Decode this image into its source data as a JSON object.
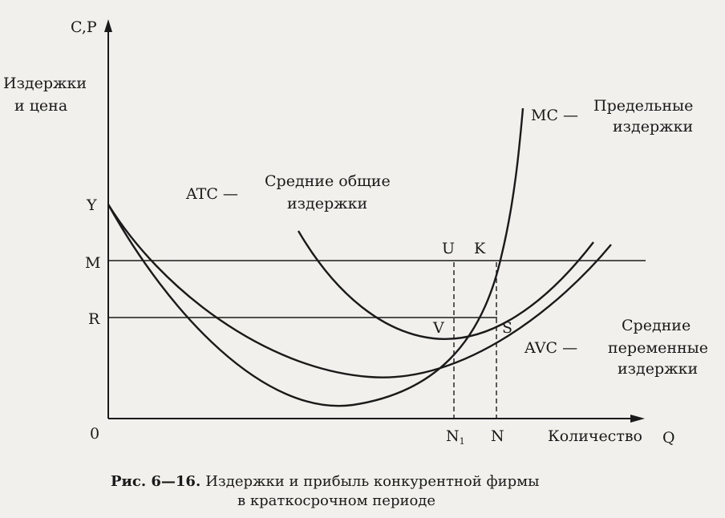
{
  "axes": {
    "y_label": "C,P",
    "x_label": "Количество",
    "x_var": "Q",
    "origin": "0",
    "y_desc_line1": "Издержки",
    "y_desc_line2": "и цена"
  },
  "levels": {
    "Y": "Y",
    "M": "M",
    "R": "R"
  },
  "quantities": {
    "N1_main": "N",
    "N1_sub": "1",
    "N": "N"
  },
  "points": {
    "U": "U",
    "K": "K",
    "V": "V",
    "S": "S"
  },
  "curves": {
    "mc": {
      "code": "MC —",
      "desc_line1": "Предельные",
      "desc_line2": "издержки"
    },
    "atc": {
      "code": "ATC —",
      "desc_line1": "Средние общие",
      "desc_line2": "издержки"
    },
    "avc": {
      "code": "AVC —",
      "desc_line1": "Средние",
      "desc_line2": "переменные",
      "desc_line3": "издержки"
    }
  },
  "caption": {
    "label": "Рис. 6—16.",
    "line1": "Издержки и прибыль конкурентной фирмы",
    "line2": "в краткосрочном периоде"
  }
}
